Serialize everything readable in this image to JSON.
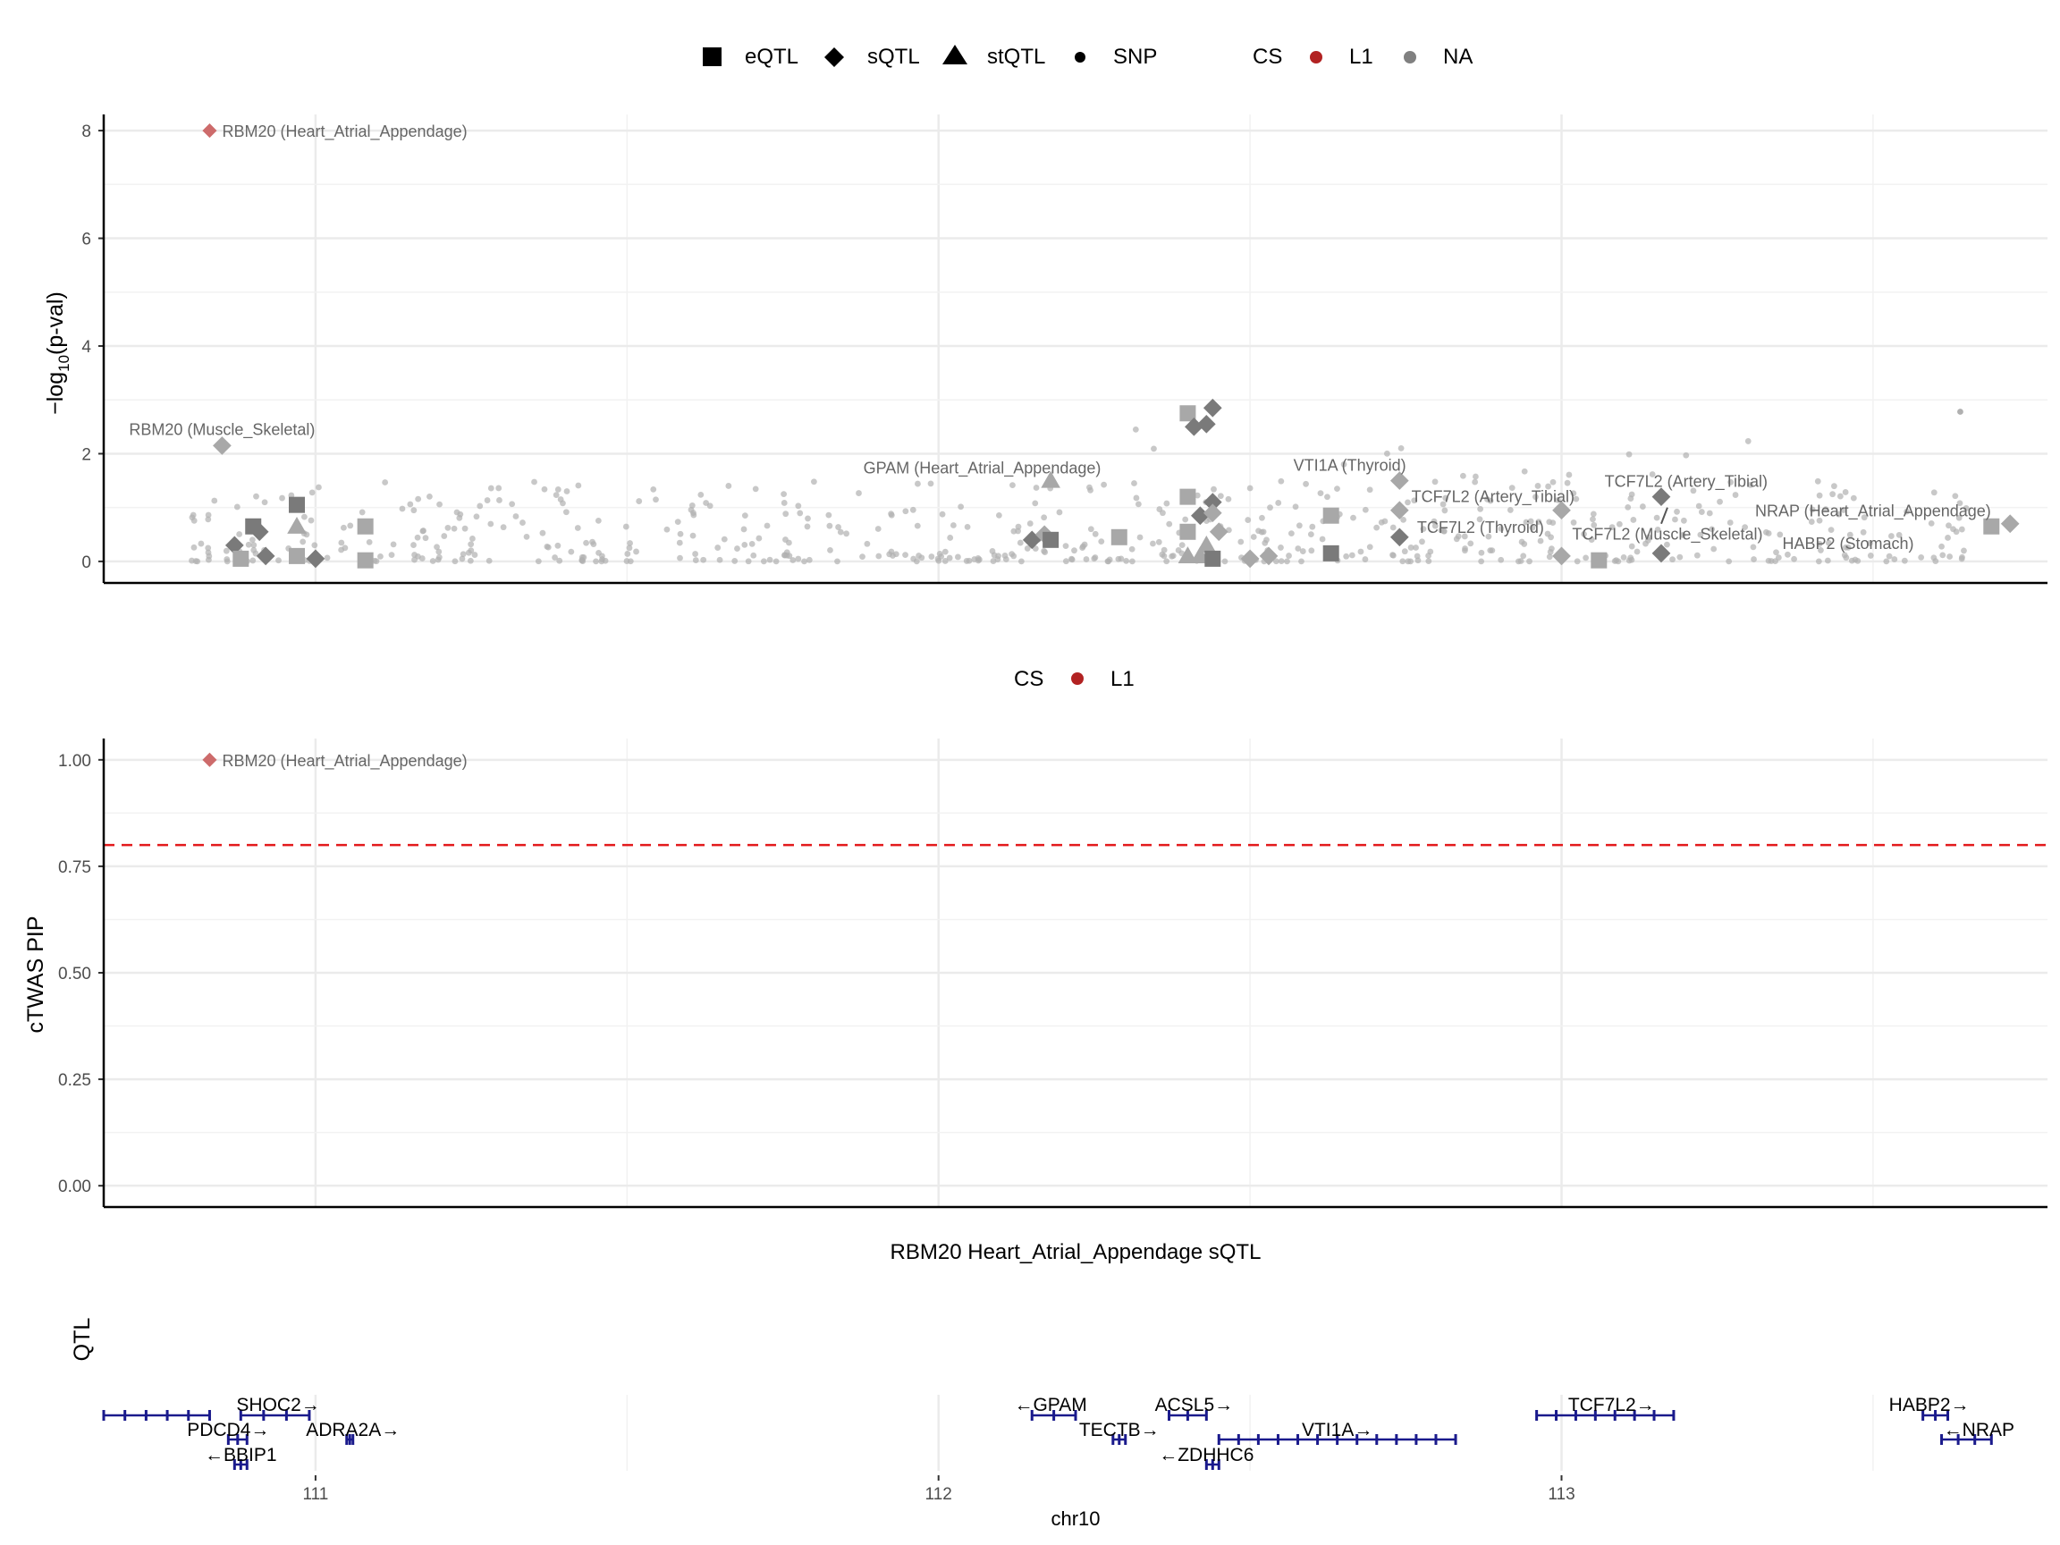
{
  "chart_data": [
    {
      "type": "scatter",
      "title": "",
      "ylabel": "−log10(p-val)",
      "ylabel_main": "−log",
      "ylabel_sub": "10",
      "ylabel_rest": "(p-val)",
      "xlim": [
        110.66,
        113.78
      ],
      "ylim": [
        -0.4,
        8.3
      ],
      "yticks": [
        "0",
        "2",
        "4",
        "6",
        "8"
      ],
      "ytick_values": [
        0,
        2,
        4,
        6,
        8
      ],
      "grid": true,
      "legend_shape": {
        "placement": "top",
        "items": [
          {
            "label": "eQTL",
            "shape": "square"
          },
          {
            "label": "sQTL",
            "shape": "diamond"
          },
          {
            "label": "stQTL",
            "shape": "triangle"
          },
          {
            "label": "SNP",
            "shape": "circle"
          }
        ]
      },
      "legend_cs": {
        "title": "CS",
        "items": [
          {
            "label": "L1",
            "color": "#b22222"
          },
          {
            "label": "NA",
            "color": "#808080"
          }
        ]
      },
      "highlighted": [
        {
          "x": 110.83,
          "y": 8.0,
          "shape": "diamond",
          "cs": "L1"
        }
      ],
      "qtl_points": [
        {
          "x": 110.85,
          "y": 2.15,
          "shape": "diamond",
          "shade": "light"
        },
        {
          "x": 110.87,
          "y": 0.3,
          "shape": "diamond",
          "shade": "dark"
        },
        {
          "x": 110.88,
          "y": 0.05,
          "shape": "square",
          "shade": "light"
        },
        {
          "x": 110.9,
          "y": 0.65,
          "shape": "square",
          "shade": "dark"
        },
        {
          "x": 110.91,
          "y": 0.55,
          "shape": "diamond",
          "shade": "dark"
        },
        {
          "x": 110.92,
          "y": 0.1,
          "shape": "diamond",
          "shade": "dark"
        },
        {
          "x": 110.97,
          "y": 1.05,
          "shape": "square",
          "shade": "dark"
        },
        {
          "x": 110.97,
          "y": 0.65,
          "shape": "triangle",
          "shade": "light"
        },
        {
          "x": 110.97,
          "y": 0.1,
          "shape": "square",
          "shade": "light"
        },
        {
          "x": 111.0,
          "y": 0.05,
          "shape": "diamond",
          "shade": "dark"
        },
        {
          "x": 111.08,
          "y": 0.65,
          "shape": "square",
          "shade": "light"
        },
        {
          "x": 111.08,
          "y": 0.02,
          "shape": "square",
          "shade": "light"
        },
        {
          "x": 112.15,
          "y": 0.4,
          "shape": "diamond",
          "shade": "dark"
        },
        {
          "x": 112.17,
          "y": 0.5,
          "shape": "diamond",
          "shade": "light"
        },
        {
          "x": 112.18,
          "y": 1.5,
          "shape": "triangle",
          "shade": "light"
        },
        {
          "x": 112.18,
          "y": 0.4,
          "shape": "square",
          "shade": "dark"
        },
        {
          "x": 112.29,
          "y": 0.45,
          "shape": "square",
          "shade": "light"
        },
        {
          "x": 112.4,
          "y": 2.75,
          "shape": "square",
          "shade": "light"
        },
        {
          "x": 112.41,
          "y": 2.5,
          "shape": "diamond",
          "shade": "dark"
        },
        {
          "x": 112.43,
          "y": 2.55,
          "shape": "diamond",
          "shade": "dark"
        },
        {
          "x": 112.44,
          "y": 2.85,
          "shape": "diamond",
          "shade": "dark"
        },
        {
          "x": 112.4,
          "y": 1.2,
          "shape": "square",
          "shade": "light"
        },
        {
          "x": 112.4,
          "y": 0.55,
          "shape": "square",
          "shade": "light"
        },
        {
          "x": 112.42,
          "y": 0.85,
          "shape": "diamond",
          "shade": "dark"
        },
        {
          "x": 112.44,
          "y": 1.1,
          "shape": "diamond",
          "shade": "dark"
        },
        {
          "x": 112.44,
          "y": 0.9,
          "shape": "diamond",
          "shade": "light"
        },
        {
          "x": 112.43,
          "y": 0.3,
          "shape": "triangle",
          "shade": "light"
        },
        {
          "x": 112.42,
          "y": 0.1,
          "shape": "triangle",
          "shade": "light"
        },
        {
          "x": 112.4,
          "y": 0.1,
          "shape": "triangle",
          "shade": "light"
        },
        {
          "x": 112.44,
          "y": 0.05,
          "shape": "square",
          "shade": "dark"
        },
        {
          "x": 112.45,
          "y": 0.55,
          "shape": "diamond",
          "shade": "light"
        },
        {
          "x": 112.5,
          "y": 0.05,
          "shape": "diamond",
          "shade": "light"
        },
        {
          "x": 112.53,
          "y": 0.1,
          "shape": "diamond",
          "shade": "light"
        },
        {
          "x": 112.63,
          "y": 0.15,
          "shape": "square",
          "shade": "dark"
        },
        {
          "x": 112.63,
          "y": 0.85,
          "shape": "square",
          "shade": "light"
        },
        {
          "x": 112.74,
          "y": 1.5,
          "shape": "diamond",
          "shade": "light"
        },
        {
          "x": 112.74,
          "y": 0.95,
          "shape": "diamond",
          "shade": "light"
        },
        {
          "x": 112.74,
          "y": 0.45,
          "shape": "diamond",
          "shade": "dark"
        },
        {
          "x": 113.0,
          "y": 0.95,
          "shape": "diamond",
          "shade": "light"
        },
        {
          "x": 113.0,
          "y": 0.1,
          "shape": "diamond",
          "shade": "light"
        },
        {
          "x": 113.06,
          "y": 0.02,
          "shape": "square",
          "shade": "light"
        },
        {
          "x": 113.16,
          "y": 1.2,
          "shape": "diamond",
          "shade": "dark"
        },
        {
          "x": 113.16,
          "y": 0.15,
          "shape": "diamond",
          "shade": "dark"
        },
        {
          "x": 113.69,
          "y": 0.65,
          "shape": "square",
          "shade": "light"
        },
        {
          "x": 113.72,
          "y": 0.7,
          "shape": "diamond",
          "shade": "light"
        }
      ],
      "annotations": [
        {
          "text": "RBM20 (Heart_Atrial_Appendage)",
          "x": 110.83,
          "y": 8.0,
          "pos": "right"
        },
        {
          "text": "RBM20 (Muscle_Skeletal)",
          "x": 110.85,
          "y": 2.15,
          "pos": "above"
        },
        {
          "text": "GPAM (Heart_Atrial_Appendage)",
          "x": 112.07,
          "y": 1.75,
          "pos": "center"
        },
        {
          "text": "VTI1A (Thyroid)",
          "x": 112.66,
          "y": 1.8,
          "pos": "center"
        },
        {
          "text": "TCF7L2 (Artery_Tibial)",
          "x": 112.89,
          "y": 1.22,
          "pos": "center"
        },
        {
          "text": "TCF7L2 (Artery_Tibial)",
          "x": 113.2,
          "y": 1.5,
          "pos": "center"
        },
        {
          "text": "TCF7L2 (Thyroid)",
          "x": 112.87,
          "y": 0.65,
          "pos": "center"
        },
        {
          "text": "TCF7L2 (Muscle_Skeletal)",
          "x": 113.17,
          "y": 0.52,
          "pos": "center"
        },
        {
          "text": "NRAP (Heart_Atrial_Appendage)",
          "x": 113.5,
          "y": 0.95,
          "pos": "center"
        },
        {
          "text": "HABP2 (Stomach)",
          "x": 113.46,
          "y": 0.35,
          "pos": "center"
        }
      ]
    },
    {
      "type": "scatter",
      "title": "",
      "ylabel": "cTWAS PIP",
      "xlim": [
        110.66,
        113.78
      ],
      "ylim": [
        -0.05,
        1.05
      ],
      "yticks": [
        "0.00",
        "0.25",
        "0.50",
        "0.75",
        "1.00"
      ],
      "ytick_values": [
        0,
        0.25,
        0.5,
        0.75,
        1.0
      ],
      "threshold": 0.8,
      "threshold_color": "#e31a1c",
      "grid": true,
      "legend_cs": {
        "title": "CS",
        "items": [
          {
            "label": "L1",
            "color": "#b22222"
          }
        ]
      },
      "points": [
        {
          "x": 110.83,
          "y": 1.0,
          "shape": "diamond",
          "cs": "L1"
        }
      ],
      "annotations": [
        {
          "text": "RBM20 (Heart_Atrial_Appendage)",
          "x": 110.83,
          "y": 1.0,
          "pos": "right"
        }
      ]
    },
    {
      "type": "gene_track",
      "title": "RBM20 Heart_Atrial_Appendage sQTL",
      "ylabel": "QTL",
      "xlabel": "chr10",
      "xticks": [
        "111",
        "112",
        "113"
      ],
      "xtick_values": [
        111,
        112,
        113
      ],
      "gene_color": "#1a1a8c",
      "genes": [
        {
          "label": "SHOC2→",
          "start": 110.66,
          "end": 110.83,
          "row": 0
        },
        {
          "label": "SHOC2→",
          "start": 110.88,
          "end": 110.99,
          "row": 0,
          "text": "SHOC2→"
        },
        {
          "label": "PDCD4→",
          "start": 110.86,
          "end": 110.89,
          "row": 1
        },
        {
          "label": "ADRA2A→",
          "start": 111.05,
          "end": 111.06,
          "row": 1
        },
        {
          "label": "←BBIP1",
          "start": 110.87,
          "end": 110.89,
          "row": 2
        },
        {
          "label": "←GPAM",
          "start": 112.15,
          "end": 112.22,
          "row": 0
        },
        {
          "label": "TECTB→",
          "start": 112.28,
          "end": 112.3,
          "row": 1
        },
        {
          "label": "ACSL5→",
          "start": 112.37,
          "end": 112.43,
          "row": 0
        },
        {
          "label": "←ZDHHC6",
          "start": 112.43,
          "end": 112.45,
          "row": 2
        },
        {
          "label": "VTI1A→",
          "start": 112.45,
          "end": 112.83,
          "row": 1
        },
        {
          "label": "TCF7L2→",
          "start": 112.96,
          "end": 113.18,
          "row": 0
        },
        {
          "label": "HABP2→",
          "start": 113.58,
          "end": 113.62,
          "row": 0
        },
        {
          "label": "←NRAP",
          "start": 113.61,
          "end": 113.69,
          "row": 1
        }
      ]
    }
  ]
}
